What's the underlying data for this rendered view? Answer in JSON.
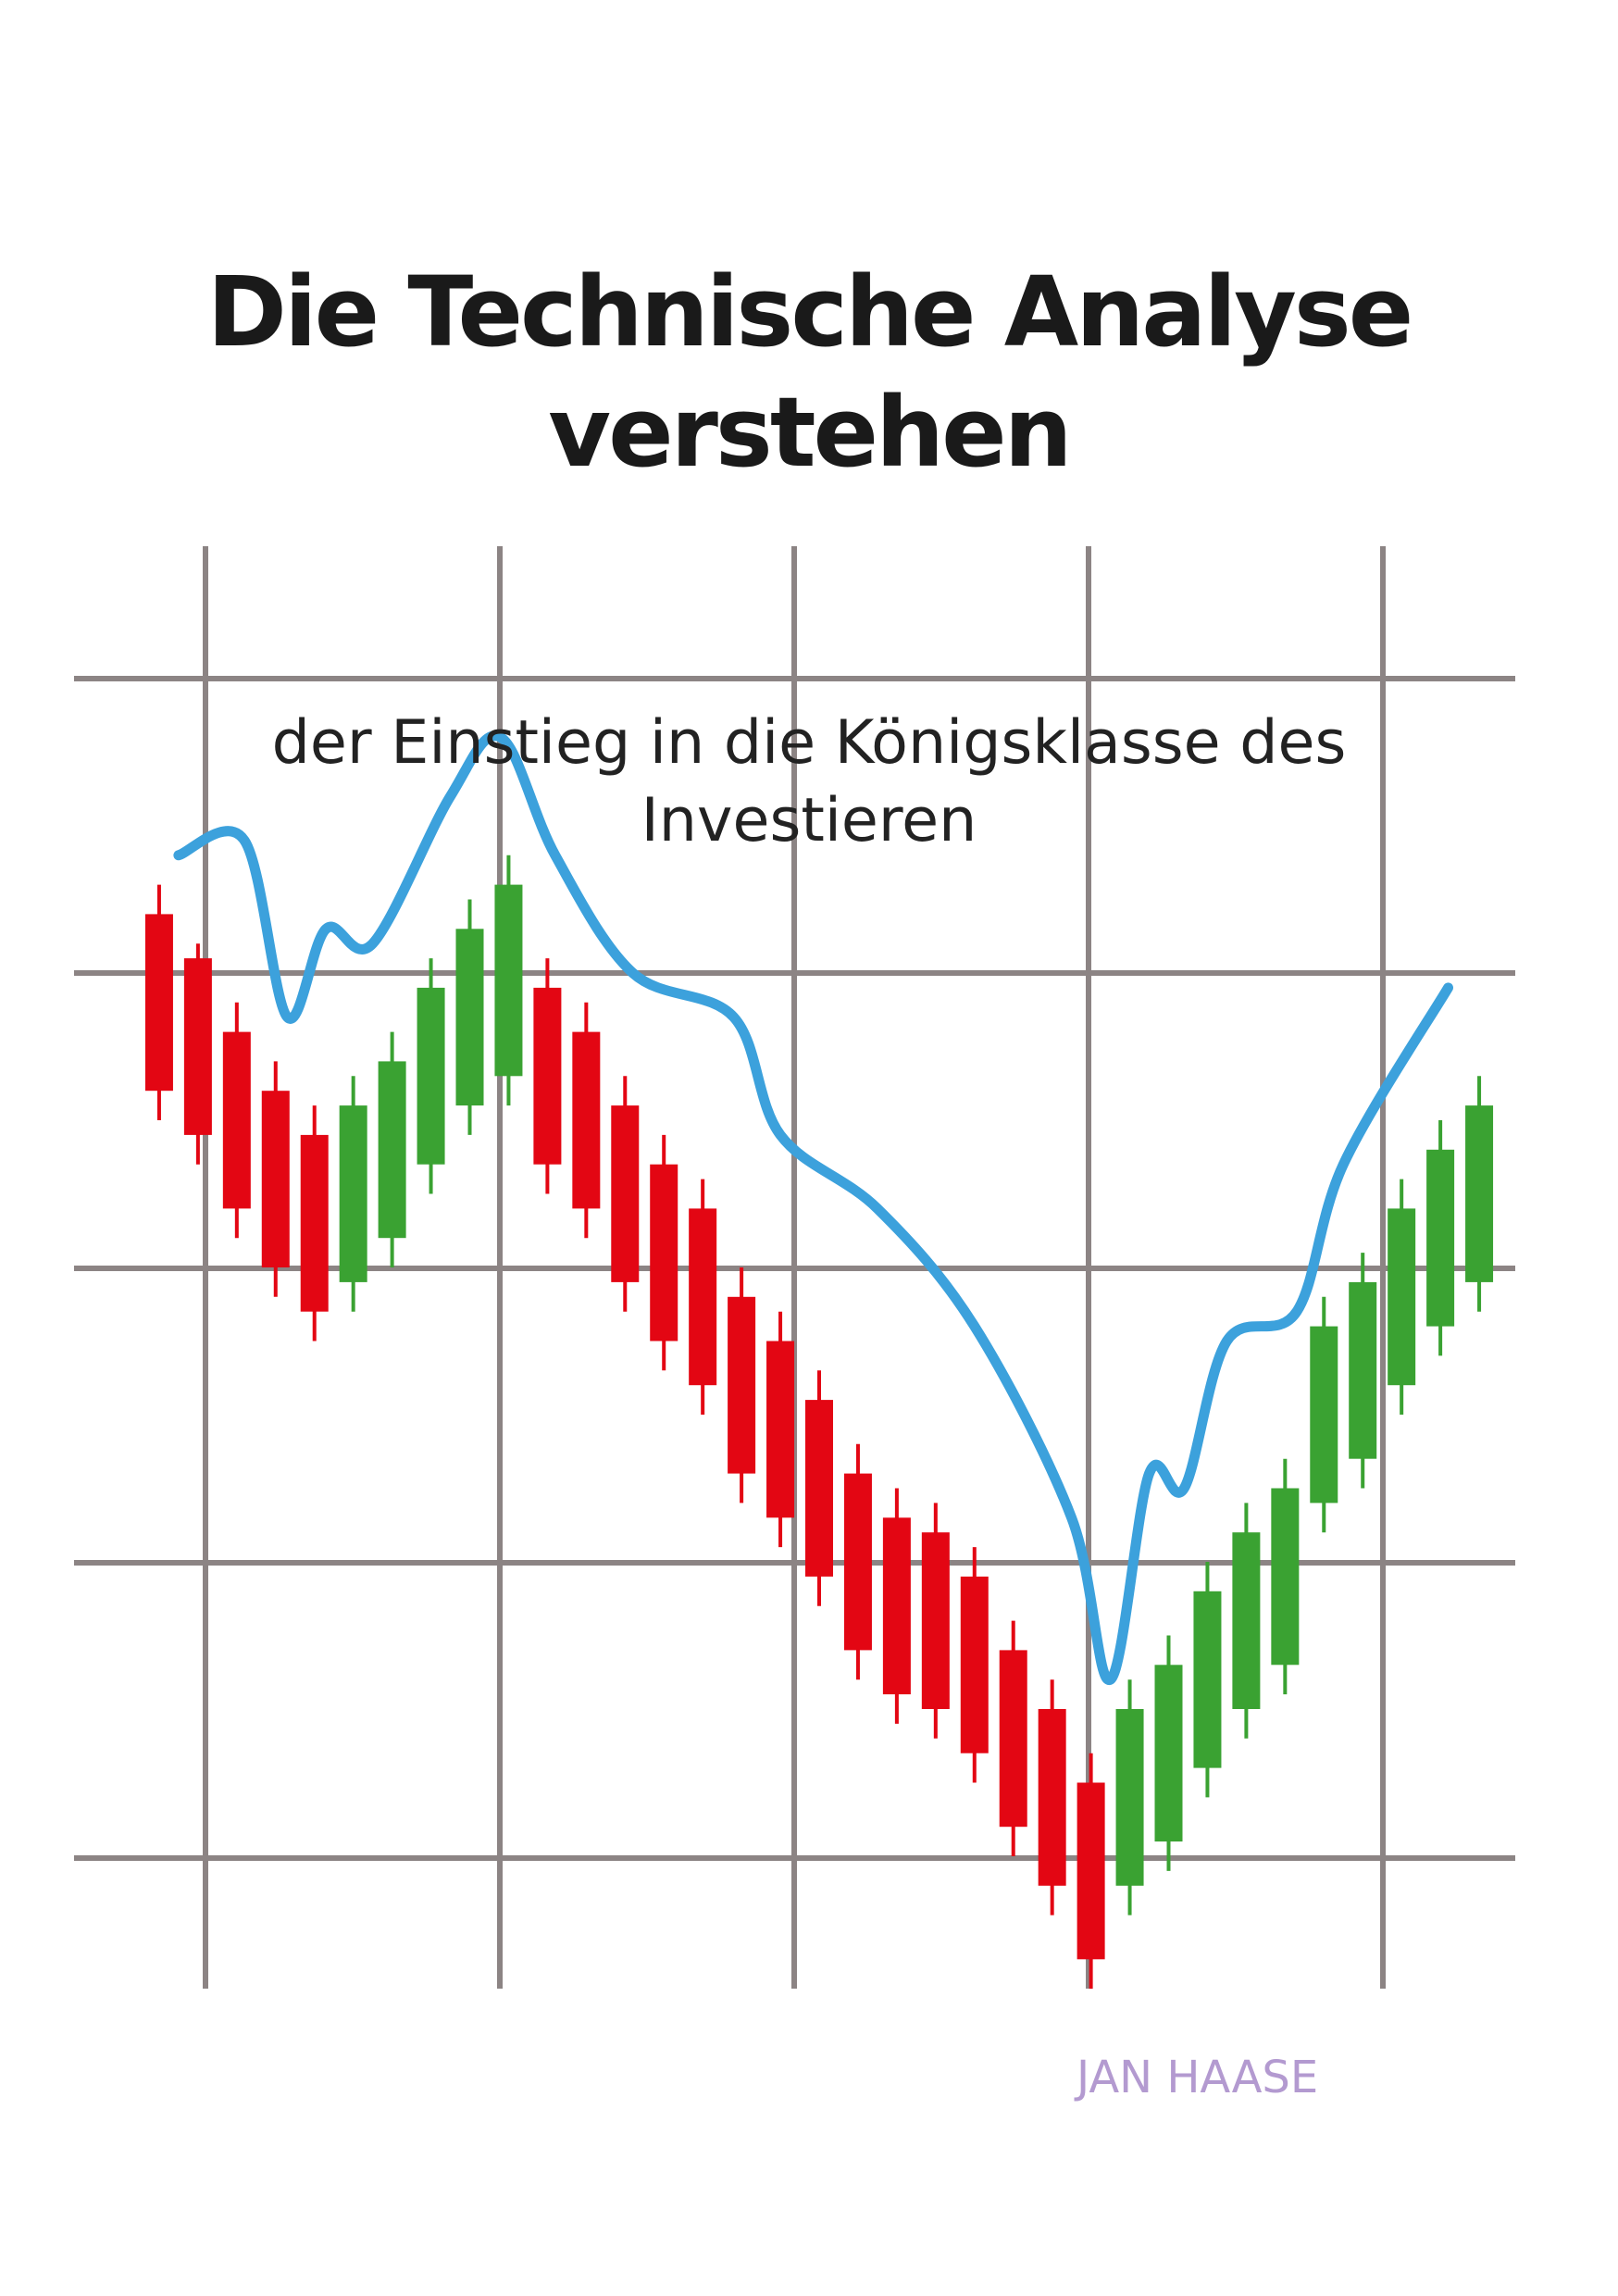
{
  "book": {
    "title_line_1": "Die Technische Analyse",
    "title_line_2": "verstehen",
    "subtitle_line_1": "der Einstieg in die Königsklasse des",
    "subtitle_line_2": "Investieren",
    "author": "JAN HAASE"
  },
  "colors": {
    "background": "#ffffff",
    "grid": "#8c8484",
    "bearish_candle": "#e30613",
    "bullish_candle": "#3aa232",
    "trend_line": "#3ca1dc",
    "title": "#1a1a1a",
    "author": "#b39ad0"
  },
  "chart_data": {
    "type": "candlestick",
    "grid": true,
    "xlim": [
      0,
      36
    ],
    "ylim": [
      0,
      100
    ],
    "candles": [
      {
        "o": 64,
        "c": 52,
        "h": 66,
        "l": 50
      },
      {
        "o": 61,
        "c": 49,
        "h": 62,
        "l": 47
      },
      {
        "o": 56,
        "c": 44,
        "h": 58,
        "l": 42
      },
      {
        "o": 52,
        "c": 40,
        "h": 54,
        "l": 38
      },
      {
        "o": 49,
        "c": 37,
        "h": 51,
        "l": 35
      },
      {
        "o": 39,
        "c": 51,
        "h": 53,
        "l": 37
      },
      {
        "o": 42,
        "c": 54,
        "h": 56,
        "l": 40
      },
      {
        "o": 47,
        "c": 59,
        "h": 61,
        "l": 45
      },
      {
        "o": 51,
        "c": 63,
        "h": 65,
        "l": 49
      },
      {
        "o": 53,
        "c": 66,
        "h": 68,
        "l": 51
      },
      {
        "o": 59,
        "c": 47,
        "h": 61,
        "l": 45
      },
      {
        "o": 56,
        "c": 44,
        "h": 58,
        "l": 42
      },
      {
        "o": 51,
        "c": 39,
        "h": 53,
        "l": 37
      },
      {
        "o": 47,
        "c": 35,
        "h": 49,
        "l": 33
      },
      {
        "o": 44,
        "c": 32,
        "h": 46,
        "l": 30
      },
      {
        "o": 38,
        "c": 26,
        "h": 40,
        "l": 24
      },
      {
        "o": 35,
        "c": 23,
        "h": 37,
        "l": 21
      },
      {
        "o": 31,
        "c": 19,
        "h": 33,
        "l": 17
      },
      {
        "o": 26,
        "c": 14,
        "h": 28,
        "l": 12
      },
      {
        "o": 23,
        "c": 11,
        "h": 25,
        "l": 9
      },
      {
        "o": 22,
        "c": 10,
        "h": 24,
        "l": 8
      },
      {
        "o": 19,
        "c": 7,
        "h": 21,
        "l": 5
      },
      {
        "o": 14,
        "c": 2,
        "h": 16,
        "l": 0
      },
      {
        "o": 10,
        "c": -2,
        "h": 12,
        "l": -4
      },
      {
        "o": 5,
        "c": -7,
        "h": 7,
        "l": -9
      },
      {
        "o": -2,
        "c": 10,
        "h": 12,
        "l": -4
      },
      {
        "o": 1,
        "c": 13,
        "h": 15,
        "l": -1
      },
      {
        "o": 6,
        "c": 18,
        "h": 20,
        "l": 4
      },
      {
        "o": 10,
        "c": 22,
        "h": 24,
        "l": 8
      },
      {
        "o": 13,
        "c": 25,
        "h": 27,
        "l": 11
      },
      {
        "o": 24,
        "c": 36,
        "h": 38,
        "l": 22
      },
      {
        "o": 27,
        "c": 39,
        "h": 41,
        "l": 25
      },
      {
        "o": 32,
        "c": 44,
        "h": 46,
        "l": 30
      },
      {
        "o": 36,
        "c": 48,
        "h": 50,
        "l": 34
      },
      {
        "o": 39,
        "c": 51,
        "h": 53,
        "l": 37
      }
    ],
    "trend_line": [
      [
        1.5,
        68
      ],
      [
        3.2,
        69
      ],
      [
        4.3,
        57
      ],
      [
        5.3,
        63
      ],
      [
        6.5,
        62
      ],
      [
        8.5,
        72
      ],
      [
        9.8,
        76
      ],
      [
        11.2,
        68
      ],
      [
        13.2,
        60
      ],
      [
        15.8,
        57
      ],
      [
        17.0,
        49
      ],
      [
        19.5,
        44
      ],
      [
        22.0,
        36
      ],
      [
        24.5,
        23
      ],
      [
        25.5,
        12
      ],
      [
        26.5,
        26
      ],
      [
        27.4,
        25
      ],
      [
        28.5,
        35
      ],
      [
        30.3,
        37
      ],
      [
        31.5,
        47
      ],
      [
        34.2,
        59
      ]
    ]
  }
}
